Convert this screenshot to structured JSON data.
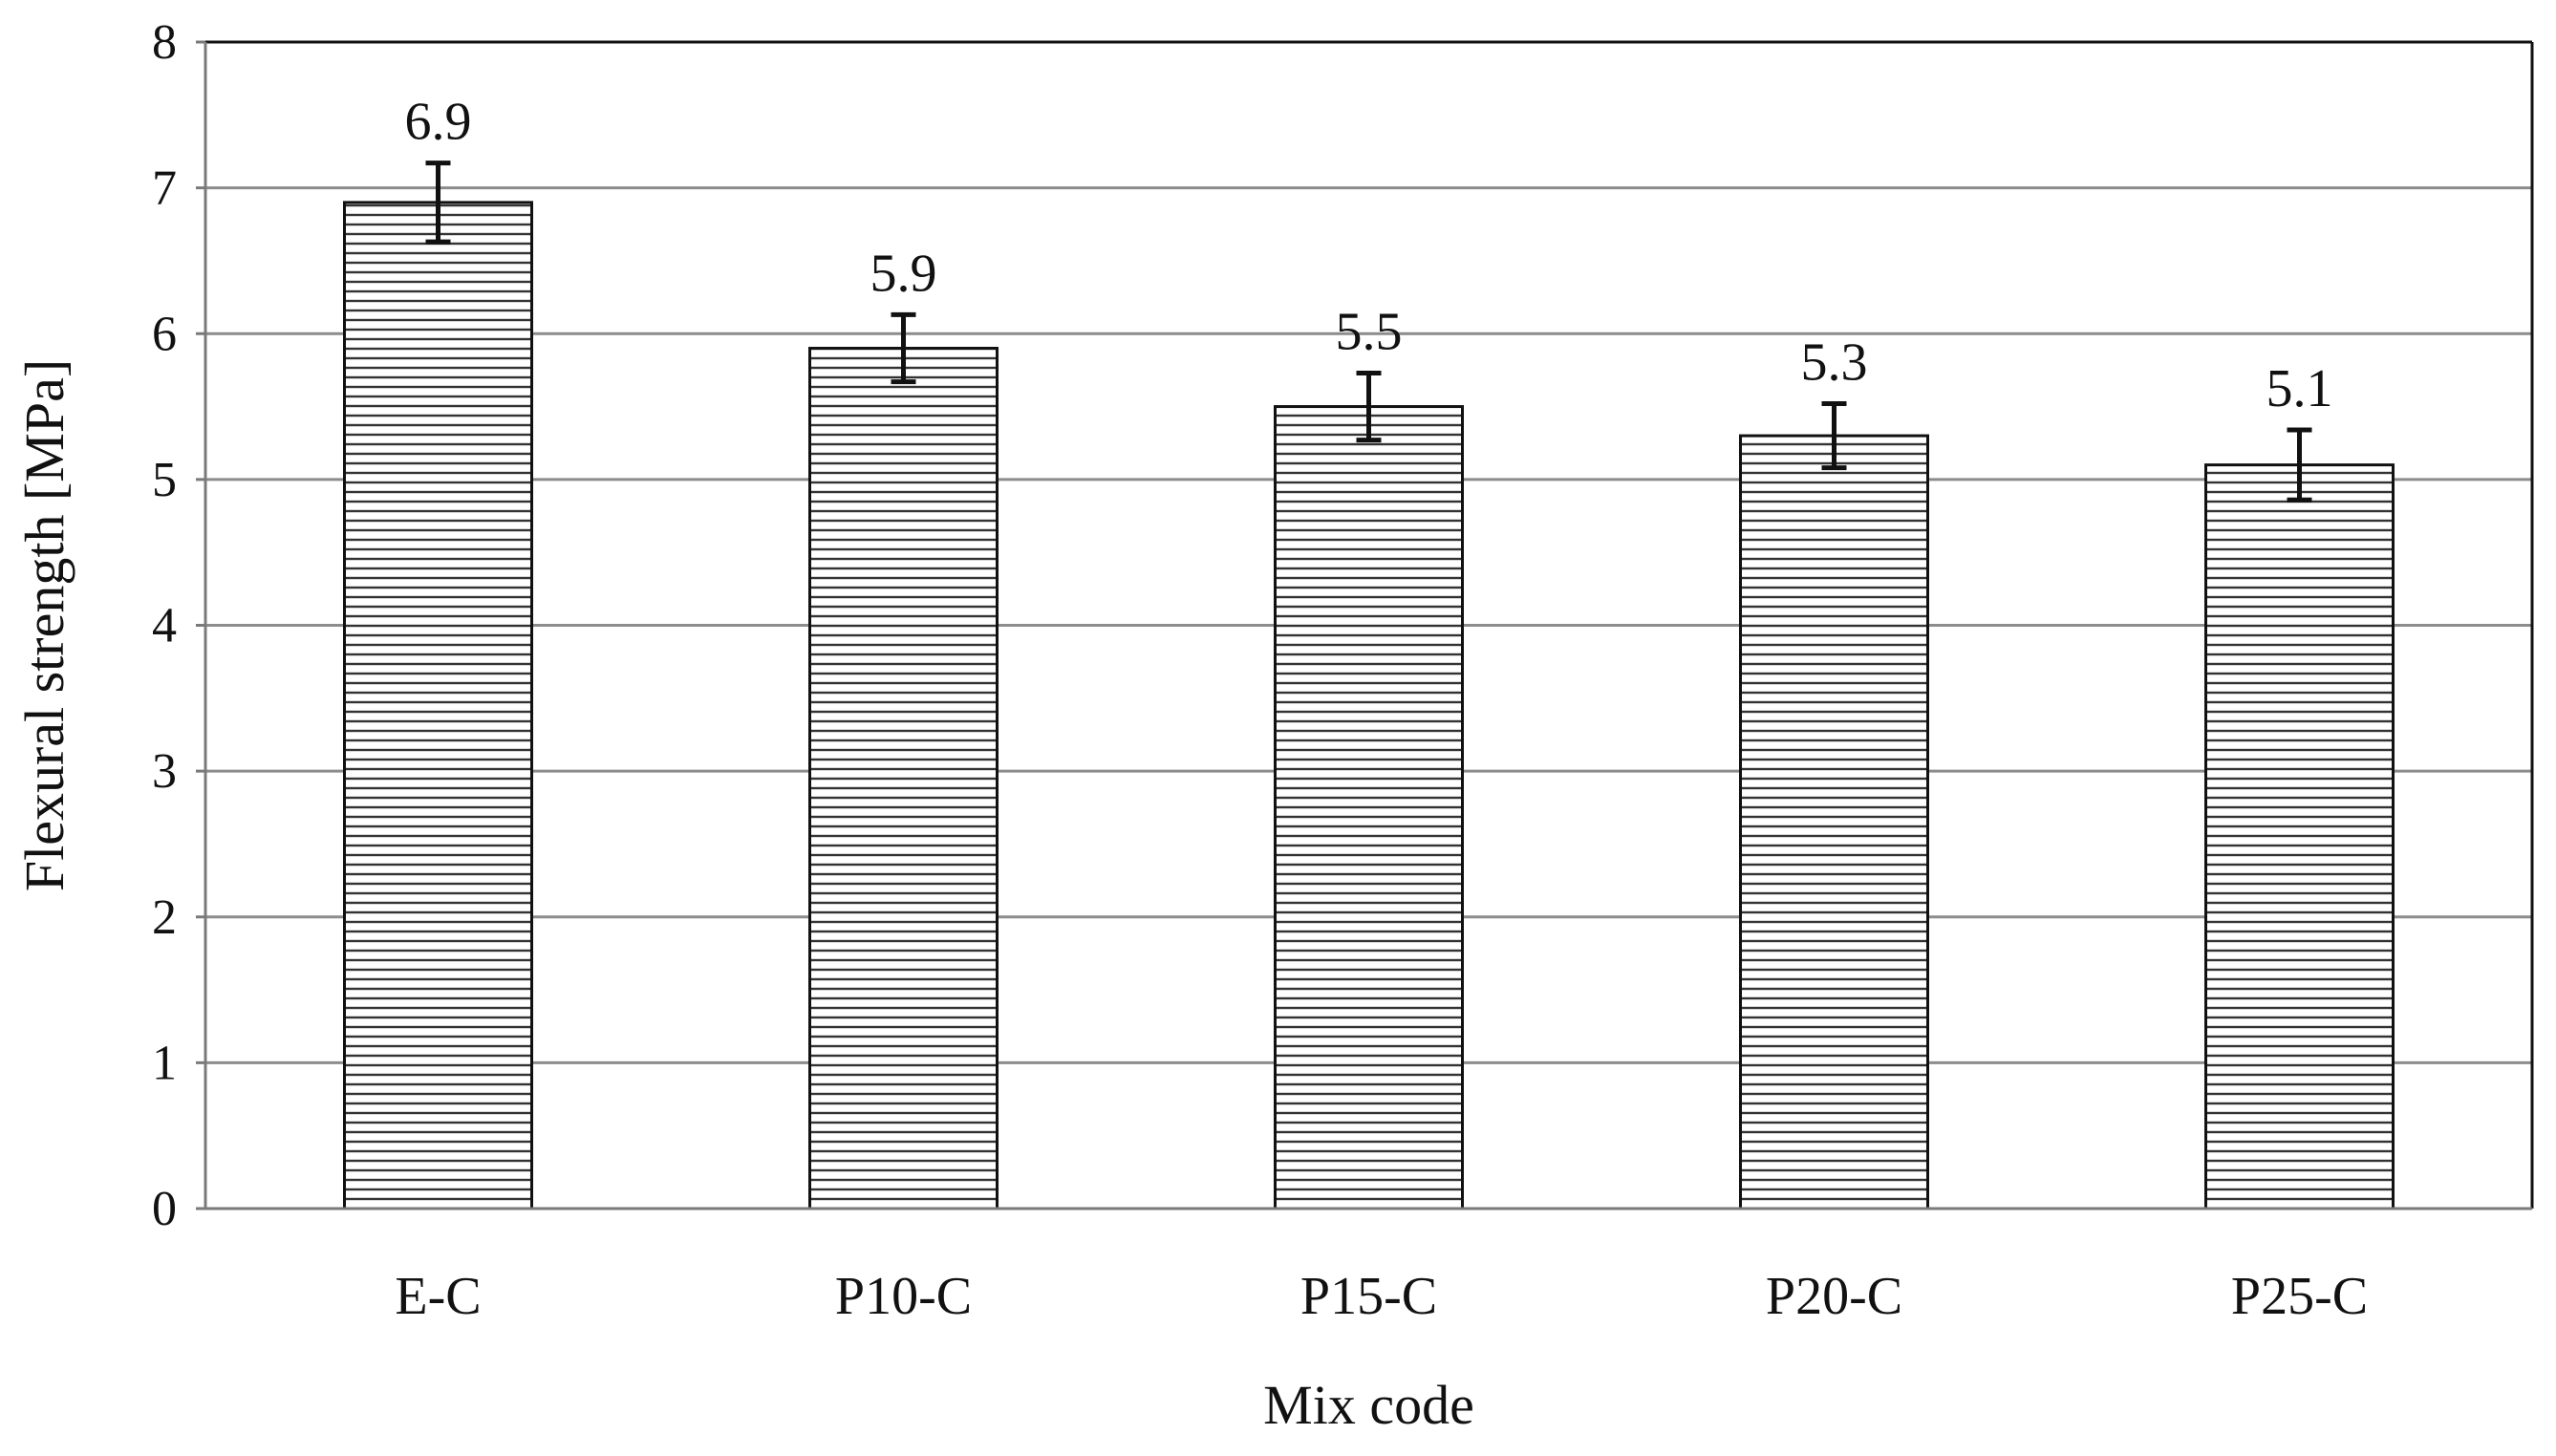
{
  "chart_data": {
    "type": "bar",
    "title": "",
    "xlabel": "Mix code",
    "ylabel": "Flexural strength [MPa]",
    "ylim": [
      0,
      8
    ],
    "yticks": [
      0,
      1,
      2,
      3,
      4,
      5,
      6,
      7,
      8
    ],
    "grid": true,
    "legend": "none",
    "bar_pattern": "horizontal-hatch",
    "error_bars": true,
    "categories": [
      "E-C",
      "P10-C",
      "P15-C",
      "P20-C",
      "P25-C"
    ],
    "values": [
      6.9,
      5.9,
      5.5,
      5.3,
      5.1
    ],
    "value_labels": [
      "6.9",
      "5.9",
      "5.5",
      "5.3",
      "5.1"
    ],
    "errors": [
      0.27,
      0.23,
      0.23,
      0.22,
      0.24
    ],
    "colors": {
      "bar_fill": "#ffffff",
      "bar_stroke": "#111111",
      "hatch": "#333333",
      "grid": "#8c8c8c",
      "axis": "#7a7a7a",
      "plot_border": "#111111",
      "error_bar": "#111111"
    }
  }
}
